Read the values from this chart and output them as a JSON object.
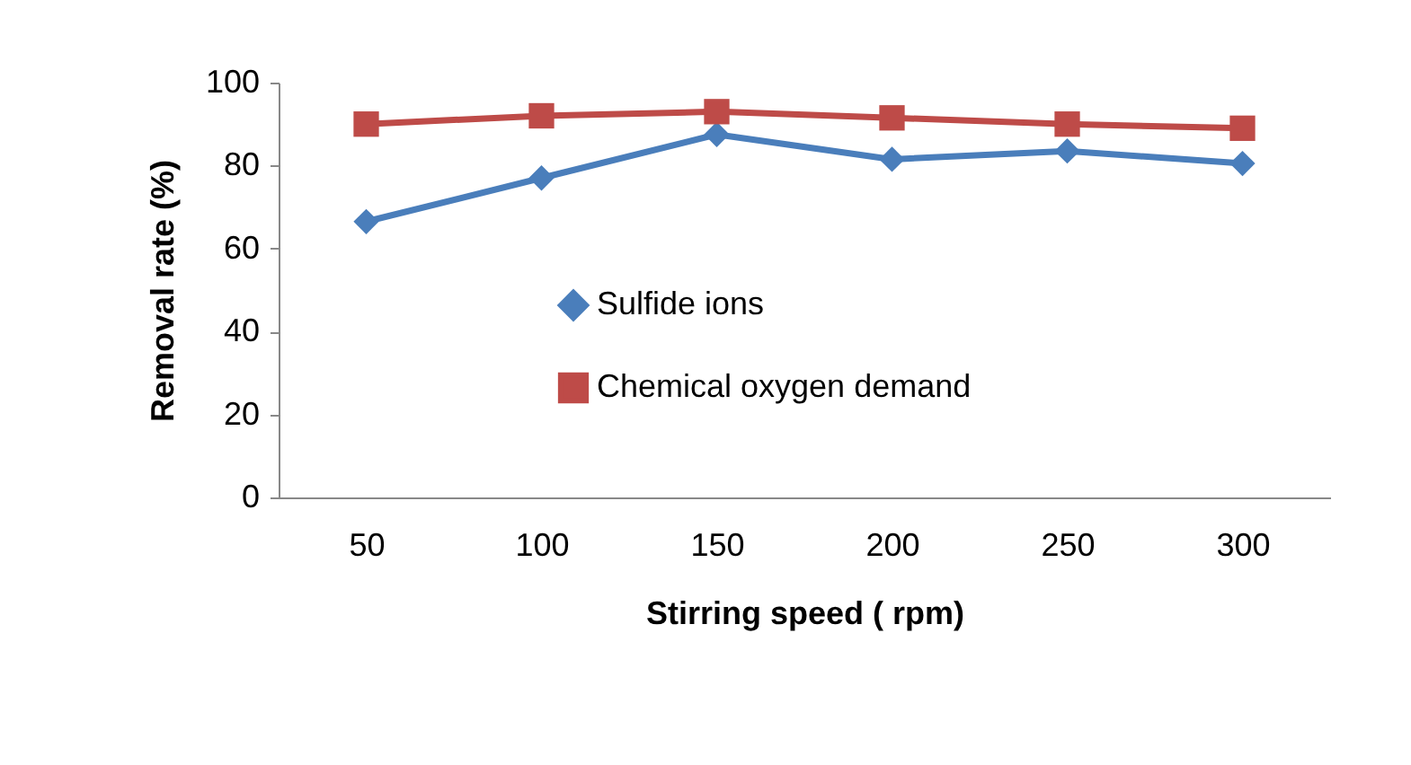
{
  "chart_data": {
    "type": "line",
    "xlabel": "Stirring speed ( rpm)",
    "ylabel": "Removal rate (%)",
    "categories": [
      "50",
      "100",
      "150",
      "200",
      "250",
      "300"
    ],
    "ylim": [
      0,
      100
    ],
    "yticks": [
      0,
      20,
      40,
      60,
      80,
      100
    ],
    "legend": "center",
    "series": [
      {
        "name": "Sulfide ions",
        "color": "#4a7ebb",
        "marker": "diamond",
        "values": [
          66.5,
          77,
          87.5,
          81.5,
          83.5,
          80.5
        ]
      },
      {
        "name": "Chemical oxygen demand",
        "color": "#be4b48",
        "marker": "square",
        "values": [
          90,
          92,
          93,
          91.5,
          90,
          89
        ]
      }
    ]
  }
}
